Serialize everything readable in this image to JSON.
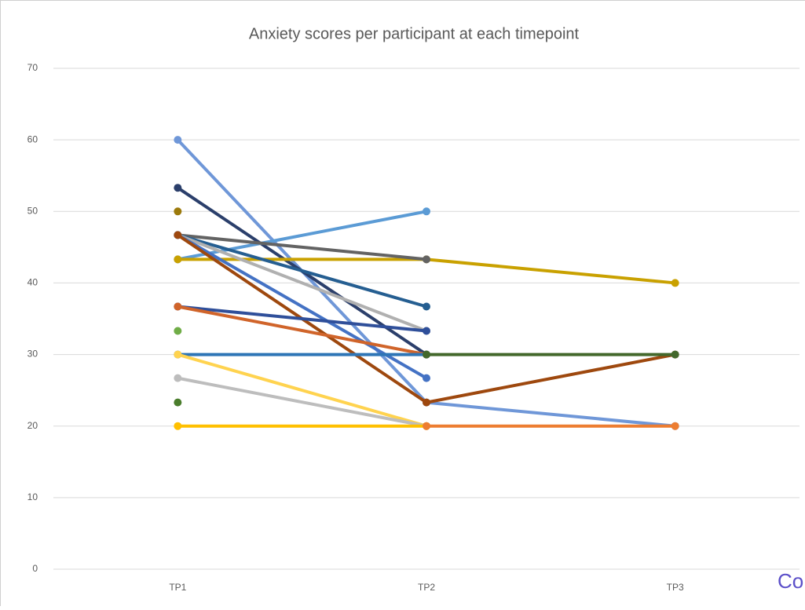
{
  "chart_data": {
    "type": "line",
    "title": "Anxiety scores per participant at each timepoint",
    "categories": [
      "TP1",
      "TP2",
      "TP3"
    ],
    "ylim": [
      0,
      70
    ],
    "yticks": [
      0,
      10,
      20,
      30,
      40,
      50,
      60,
      70
    ],
    "grid": true,
    "annotation": "Co",
    "series": [
      {
        "color": "#6f97d8",
        "values": [
          60,
          23.3,
          20
        ]
      },
      {
        "color": "#2b3f6b",
        "values": [
          53.3,
          30,
          null
        ]
      },
      {
        "color": "#9c7a0c",
        "values": [
          50,
          null,
          null
        ]
      },
      {
        "color": "#5b9bd5",
        "values": [
          43.3,
          50,
          null
        ]
      },
      {
        "color": "#c9a100",
        "values": [
          43.3,
          43.3,
          40
        ]
      },
      {
        "color": "#636363",
        "values": [
          46.7,
          43.3,
          null
        ]
      },
      {
        "color": "#255e91",
        "values": [
          46.7,
          36.7,
          null
        ]
      },
      {
        "color": "#b0b0b0",
        "values": [
          46.7,
          33.3,
          null
        ]
      },
      {
        "color": "#4472c4",
        "values": [
          46.7,
          26.7,
          null
        ]
      },
      {
        "color": "#9e480e",
        "values": [
          46.7,
          23.3,
          30
        ]
      },
      {
        "color": "#2f4f9a",
        "values": [
          36.7,
          33.3,
          null
        ]
      },
      {
        "color": "#d0642a",
        "values": [
          36.7,
          30,
          null
        ]
      },
      {
        "color": "#70ad47",
        "values": [
          33.3,
          null,
          null
        ]
      },
      {
        "color": "#2e75b6",
        "values": [
          30,
          30,
          null
        ]
      },
      {
        "color": "#43682b",
        "values": [
          null,
          30,
          30
        ]
      },
      {
        "color": "#ffd34f",
        "values": [
          30,
          20,
          null
        ]
      },
      {
        "color": "#bdbdbd",
        "values": [
          26.7,
          20,
          null
        ]
      },
      {
        "color": "#4a7d2c",
        "values": [
          23.3,
          null,
          null
        ]
      },
      {
        "color": "#ffc000",
        "values": [
          20,
          20,
          null
        ]
      },
      {
        "color": "#ed7d31",
        "values": [
          null,
          20,
          20
        ]
      }
    ]
  }
}
